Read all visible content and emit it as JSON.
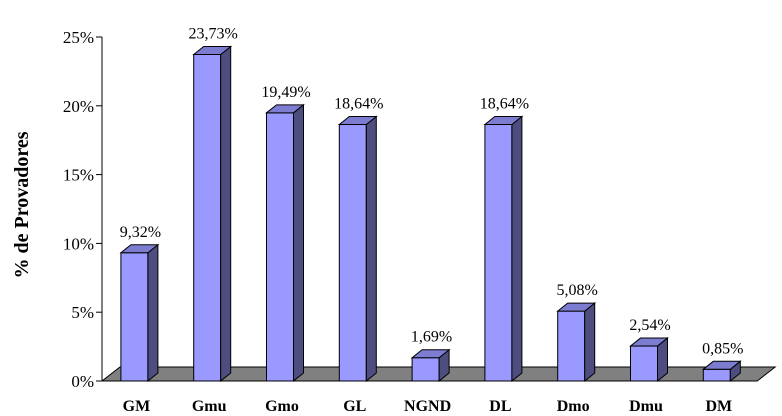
{
  "chart_data": {
    "type": "bar",
    "categories": [
      "GM",
      "Gmu",
      "Gmo",
      "GL",
      "NGND",
      "DL",
      "Dmo",
      "Dmu",
      "DM"
    ],
    "values": [
      9.32,
      23.73,
      19.49,
      18.64,
      1.69,
      18.64,
      5.08,
      2.54,
      0.85
    ],
    "data_labels": [
      "9,32%",
      "23,73%",
      "19,49%",
      "18,64%",
      "1,69%",
      "18,64%",
      "5,08%",
      "2,54%",
      "0,85%"
    ],
    "y_ticks": [
      0,
      5,
      10,
      15,
      20,
      25
    ],
    "y_tick_labels": [
      "0%",
      "5%",
      "10%",
      "15%",
      "20%",
      "25%"
    ],
    "ylim": [
      0,
      25
    ],
    "ylabel": "% de Provadores",
    "xlabel": "",
    "grid": false,
    "legend": "none",
    "three_d": true,
    "colors": {
      "bar_front": "#9999ff",
      "bar_side": "#4d4d80",
      "bar_top": "#7c7cd0",
      "floor": "#808080",
      "axis": "#000000"
    }
  }
}
